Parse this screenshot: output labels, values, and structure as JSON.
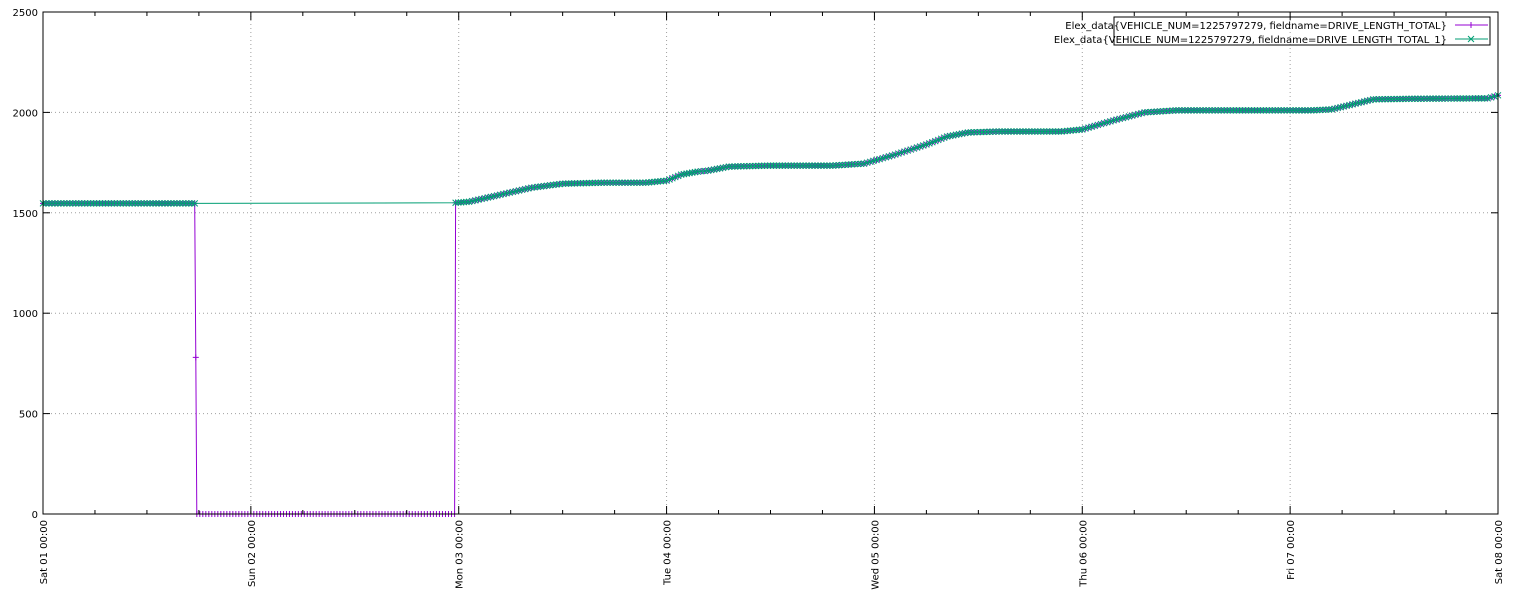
{
  "chart_data": {
    "type": "line",
    "title": "",
    "xlabel": "",
    "ylabel": "",
    "ylim": [
      0,
      2500
    ],
    "yticks": [
      "0",
      "500",
      "1000",
      "1500",
      "2000",
      "2500"
    ],
    "xticks": [
      "Sat 01 00:00",
      "Sun 02 00:00",
      "Mon 03 00:00",
      "Tue 04 00:00",
      "Wed 05 00:00",
      "Thu 06 00:00",
      "Fri 07 00:00",
      "Sat 08 00:00"
    ],
    "x_unit": "days since Sat 01 00:00",
    "xlim": [
      0,
      7
    ],
    "grid": true,
    "legend_position": "top-right",
    "series": [
      {
        "name": "Elex_data{VEHICLE_NUM=1225797279, fieldname=DRIVE_LENGTH_TOTAL}",
        "color": "#9400d3",
        "marker": "plus",
        "points": [
          [
            0.0,
            1547
          ],
          [
            0.73,
            1547
          ],
          [
            0.735,
            780
          ],
          [
            0.74,
            0
          ],
          [
            1.0,
            0
          ],
          [
            1.5,
            0
          ],
          [
            1.98,
            0
          ],
          [
            1.985,
            1550
          ],
          [
            2.05,
            1555
          ],
          [
            2.2,
            1590
          ],
          [
            2.35,
            1625
          ],
          [
            2.5,
            1645
          ],
          [
            2.7,
            1650
          ],
          [
            2.9,
            1650
          ],
          [
            3.0,
            1660
          ],
          [
            3.07,
            1690
          ],
          [
            3.15,
            1705
          ],
          [
            3.2,
            1710
          ],
          [
            3.3,
            1730
          ],
          [
            3.5,
            1735
          ],
          [
            3.8,
            1735
          ],
          [
            3.95,
            1745
          ],
          [
            4.1,
            1790
          ],
          [
            4.25,
            1840
          ],
          [
            4.35,
            1880
          ],
          [
            4.45,
            1900
          ],
          [
            4.6,
            1905
          ],
          [
            4.9,
            1905
          ],
          [
            5.0,
            1915
          ],
          [
            5.15,
            1960
          ],
          [
            5.3,
            2000
          ],
          [
            5.45,
            2010
          ],
          [
            5.8,
            2010
          ],
          [
            6.1,
            2010
          ],
          [
            6.2,
            2015
          ],
          [
            6.3,
            2040
          ],
          [
            6.4,
            2065
          ],
          [
            6.6,
            2068
          ],
          [
            6.95,
            2070
          ],
          [
            7.0,
            2085
          ]
        ]
      },
      {
        "name": "Elex_data{VEHICLE_NUM=1225797279, fieldname=DRIVE_LENGTH_TOTAL_1}",
        "color": "#009e73",
        "marker": "x",
        "points": [
          [
            0.0,
            1547
          ],
          [
            0.73,
            1547
          ],
          [
            1.985,
            1550
          ],
          [
            2.05,
            1555
          ],
          [
            2.2,
            1590
          ],
          [
            2.35,
            1625
          ],
          [
            2.5,
            1645
          ],
          [
            2.7,
            1650
          ],
          [
            2.9,
            1650
          ],
          [
            3.0,
            1660
          ],
          [
            3.07,
            1690
          ],
          [
            3.15,
            1705
          ],
          [
            3.2,
            1710
          ],
          [
            3.3,
            1730
          ],
          [
            3.5,
            1735
          ],
          [
            3.8,
            1735
          ],
          [
            3.95,
            1745
          ],
          [
            4.1,
            1790
          ],
          [
            4.25,
            1840
          ],
          [
            4.35,
            1880
          ],
          [
            4.45,
            1900
          ],
          [
            4.6,
            1905
          ],
          [
            4.9,
            1905
          ],
          [
            5.0,
            1915
          ],
          [
            5.15,
            1960
          ],
          [
            5.3,
            2000
          ],
          [
            5.45,
            2010
          ],
          [
            5.8,
            2010
          ],
          [
            6.1,
            2010
          ],
          [
            6.2,
            2015
          ],
          [
            6.3,
            2040
          ],
          [
            6.4,
            2065
          ],
          [
            6.6,
            2068
          ],
          [
            6.95,
            2070
          ],
          [
            7.0,
            2085
          ]
        ]
      }
    ]
  }
}
